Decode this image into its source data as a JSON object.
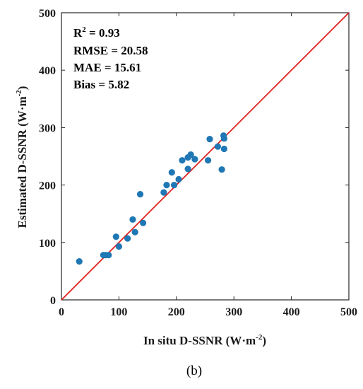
{
  "chart_data": {
    "type": "scatter",
    "xlabel": {
      "main": "In situ D-SSNR (W·m",
      "exp": "-2",
      "close": ")"
    },
    "ylabel": {
      "main": "Estimated D-SSNR (W·m",
      "exp": "-2",
      "close": ")"
    },
    "xlim": [
      0,
      500
    ],
    "ylim": [
      0,
      500
    ],
    "xticks": [
      0,
      100,
      200,
      300,
      400,
      500
    ],
    "yticks": [
      0,
      100,
      200,
      300,
      400,
      500
    ],
    "grid": false,
    "stats": {
      "r2_label": "R",
      "r2_exp": "2",
      "r2_value": " = 0.93",
      "rmse": "RMSE = 20.58",
      "mae": "MAE = 15.61",
      "bias": "Bias = 5.82"
    },
    "reference_line": {
      "from": [
        0,
        0
      ],
      "to": [
        500,
        500
      ],
      "color": "#e02020"
    },
    "point_color": "#1f77b4",
    "points": [
      [
        31,
        67
      ],
      [
        73,
        78
      ],
      [
        77,
        78
      ],
      [
        82,
        78
      ],
      [
        95,
        110
      ],
      [
        100,
        93
      ],
      [
        115,
        107
      ],
      [
        124,
        140
      ],
      [
        128,
        118
      ],
      [
        137,
        184
      ],
      [
        142,
        134
      ],
      [
        178,
        187
      ],
      [
        183,
        200
      ],
      [
        192,
        222
      ],
      [
        196,
        200
      ],
      [
        204,
        210
      ],
      [
        210,
        243
      ],
      [
        220,
        228
      ],
      [
        220,
        248
      ],
      [
        225,
        253
      ],
      [
        232,
        245
      ],
      [
        255,
        243
      ],
      [
        258,
        280
      ],
      [
        272,
        267
      ],
      [
        279,
        227
      ],
      [
        282,
        286
      ],
      [
        283,
        281
      ],
      [
        283,
        263
      ]
    ],
    "caption": "(b)"
  }
}
